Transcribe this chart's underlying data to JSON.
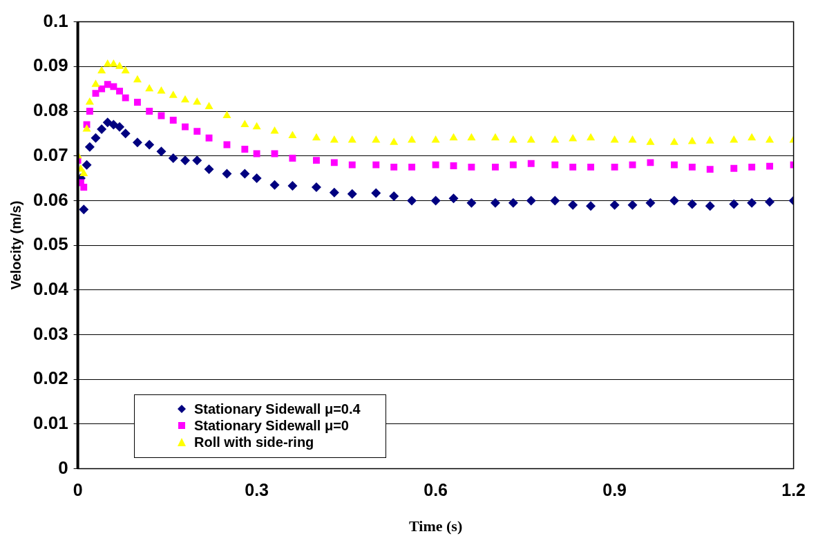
{
  "chart_data": {
    "type": "scatter",
    "xlabel": "Time (s)",
    "ylabel": "Velocity (m/s)",
    "x": [
      0,
      0.005,
      0.01,
      0.015,
      0.02,
      0.03,
      0.04,
      0.05,
      0.06,
      0.07,
      0.08,
      0.1,
      0.12,
      0.14,
      0.16,
      0.18,
      0.2,
      0.22,
      0.25,
      0.28,
      0.3,
      0.33,
      0.36,
      0.4,
      0.43,
      0.46,
      0.5,
      0.53,
      0.56,
      0.6,
      0.63,
      0.66,
      0.7,
      0.73,
      0.76,
      0.8,
      0.83,
      0.86,
      0.9,
      0.93,
      0.96,
      1.0,
      1.03,
      1.06,
      1.1,
      1.13,
      1.16,
      1.2
    ],
    "series": [
      {
        "name": "Stationary Sidewall μ=0.4",
        "color": "#000080",
        "marker": "diamond",
        "values": [
          null,
          0.065,
          0.058,
          0.068,
          0.072,
          0.074,
          0.076,
          0.0775,
          0.077,
          0.0765,
          0.075,
          0.073,
          0.0725,
          0.071,
          0.0695,
          0.069,
          0.069,
          0.067,
          0.066,
          0.066,
          0.065,
          0.0635,
          0.0633,
          0.063,
          0.0618,
          0.0615,
          0.0617,
          0.061,
          0.06,
          0.06,
          0.0605,
          0.0595,
          0.0595,
          0.0595,
          0.06,
          0.06,
          0.059,
          0.0588,
          0.059,
          0.059,
          0.0595,
          0.06,
          0.0592,
          0.0588,
          0.0592,
          0.0595,
          0.0597,
          0.06
        ]
      },
      {
        "name": "Stationary Sidewall μ=0",
        "color": "#ff00ff",
        "marker": "square",
        "values": [
          0.069,
          0.064,
          0.063,
          0.077,
          0.08,
          0.084,
          0.085,
          0.086,
          0.0855,
          0.0845,
          0.083,
          0.082,
          0.08,
          0.079,
          0.078,
          0.0765,
          0.0755,
          0.074,
          0.0725,
          0.0715,
          0.0705,
          0.0705,
          0.0695,
          0.069,
          0.0685,
          0.068,
          0.068,
          0.0675,
          0.0675,
          0.068,
          0.0678,
          0.0675,
          0.0675,
          0.068,
          0.0683,
          0.068,
          0.0675,
          0.0675,
          0.0675,
          0.068,
          0.0685,
          0.068,
          0.0675,
          0.067,
          0.0672,
          0.0675,
          0.0677,
          0.068
        ]
      },
      {
        "name": "Roll with side-ring",
        "color": "#ffff00",
        "marker": "triangle",
        "values": [
          0.07,
          0.067,
          0.066,
          0.076,
          0.082,
          0.086,
          0.089,
          0.0905,
          0.0905,
          0.09,
          0.089,
          0.087,
          0.085,
          0.0845,
          0.0835,
          0.0825,
          0.082,
          0.081,
          0.079,
          0.077,
          0.0765,
          0.0755,
          0.0745,
          0.074,
          0.0735,
          0.0735,
          0.0735,
          0.073,
          0.0735,
          0.0735,
          0.074,
          0.074,
          0.074,
          0.0735,
          0.0735,
          0.0735,
          0.0738,
          0.074,
          0.0735,
          0.0735,
          0.073,
          0.073,
          0.0732,
          0.0733,
          0.0735,
          0.074,
          0.0735,
          0.0735
        ]
      }
    ],
    "xlim": [
      0,
      1.2
    ],
    "xticks": [
      0,
      0.3,
      0.6,
      0.9,
      1.2
    ],
    "ylim": [
      0,
      0.1
    ],
    "yticks": [
      0,
      0.01,
      0.02,
      0.03,
      0.04,
      0.05,
      0.06,
      0.07,
      0.08,
      0.09,
      0.1
    ],
    "grid": "y",
    "legend": "bottom left"
  }
}
